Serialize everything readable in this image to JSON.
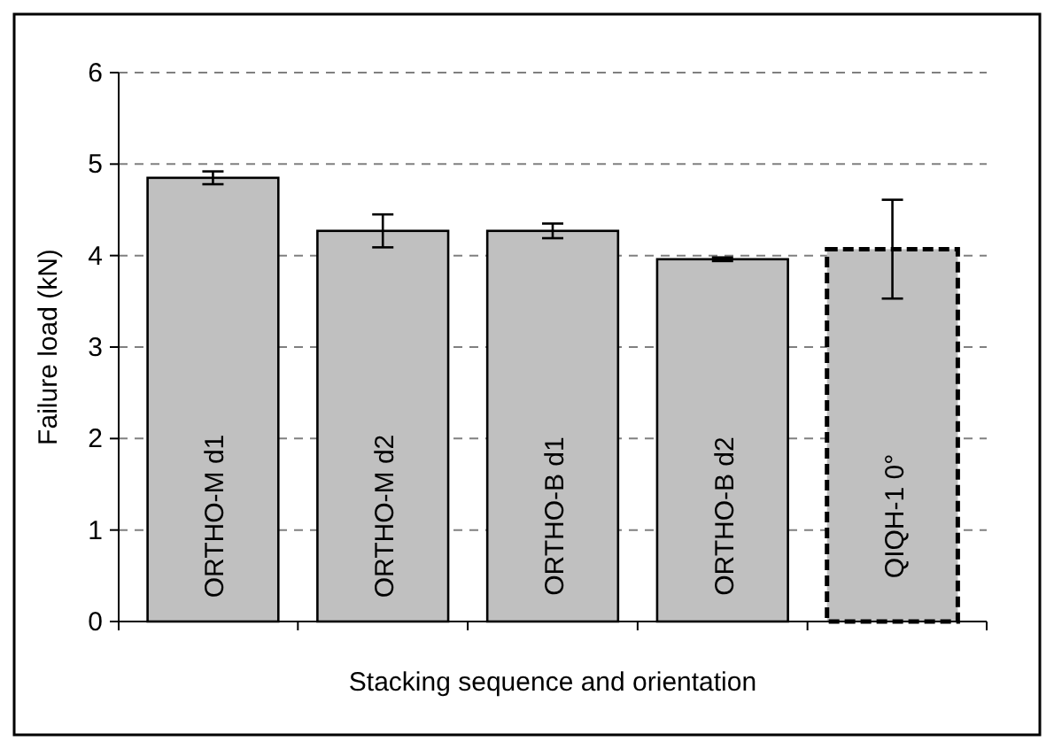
{
  "chart_data": {
    "type": "bar",
    "xlabel": "Stacking sequence and orientation",
    "ylabel": "Failure load (kN)",
    "categories": [
      "ORTHO-M d1",
      "ORTHO-M d2",
      "ORTHO-B d1",
      "ORTHO-B d2",
      "QIQH-1 0°"
    ],
    "series": [
      {
        "color": "#c0c0c0",
        "values": [
          4.85,
          4.27,
          4.27,
          3.96,
          null
        ],
        "errors": [
          0.07,
          0.18,
          0.08,
          0.02,
          null
        ],
        "line_style": "solid"
      },
      {
        "color": "#c0c0c0",
        "values": [
          null,
          null,
          null,
          null,
          4.07
        ],
        "errors": [
          null,
          null,
          null,
          null,
          0.54
        ],
        "line_style": "dashed"
      }
    ],
    "ylim": [
      0,
      6
    ],
    "yticks": [
      0,
      1,
      2,
      3,
      4,
      5,
      6
    ],
    "grid": "y"
  }
}
